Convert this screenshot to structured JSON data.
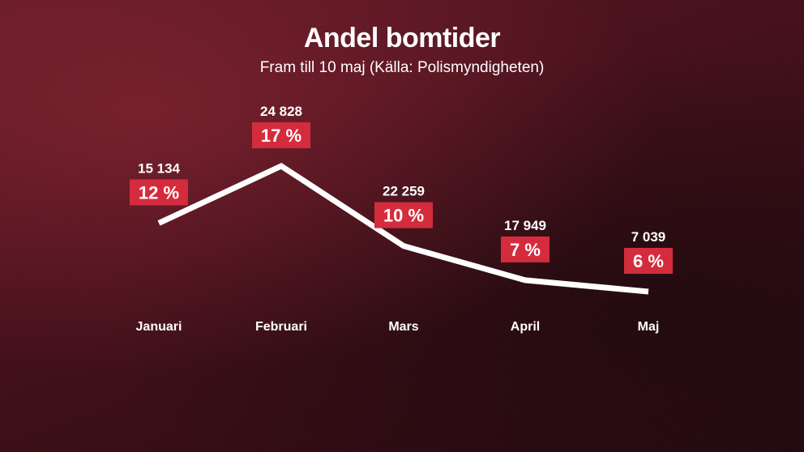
{
  "title": "Andel bomtider",
  "subtitle": "Fram till 10 maj (Källa: Polismyndigheten)",
  "colors": {
    "line": "#ffffff",
    "label_box": "#d42c3c",
    "text": "#ffffff"
  },
  "chart_data": {
    "type": "line",
    "title": "Andel bomtider",
    "subtitle": "Fram till 10 maj (Källa: Polismyndigheten)",
    "categories": [
      "Januari",
      "Februari",
      "Mars",
      "April",
      "Maj"
    ],
    "series": [
      {
        "values": [
          12,
          17,
          10,
          7,
          6
        ],
        "value_labels": [
          "12 %",
          "17 %",
          "10 %",
          "7 %",
          "6 %"
        ]
      }
    ],
    "counts": [
      15134,
      24828,
      22259,
      17949,
      7039
    ],
    "count_labels": [
      "15 134",
      "24 828",
      "22 259",
      "17 949",
      "7 039"
    ],
    "grid": false,
    "legend": "none"
  }
}
